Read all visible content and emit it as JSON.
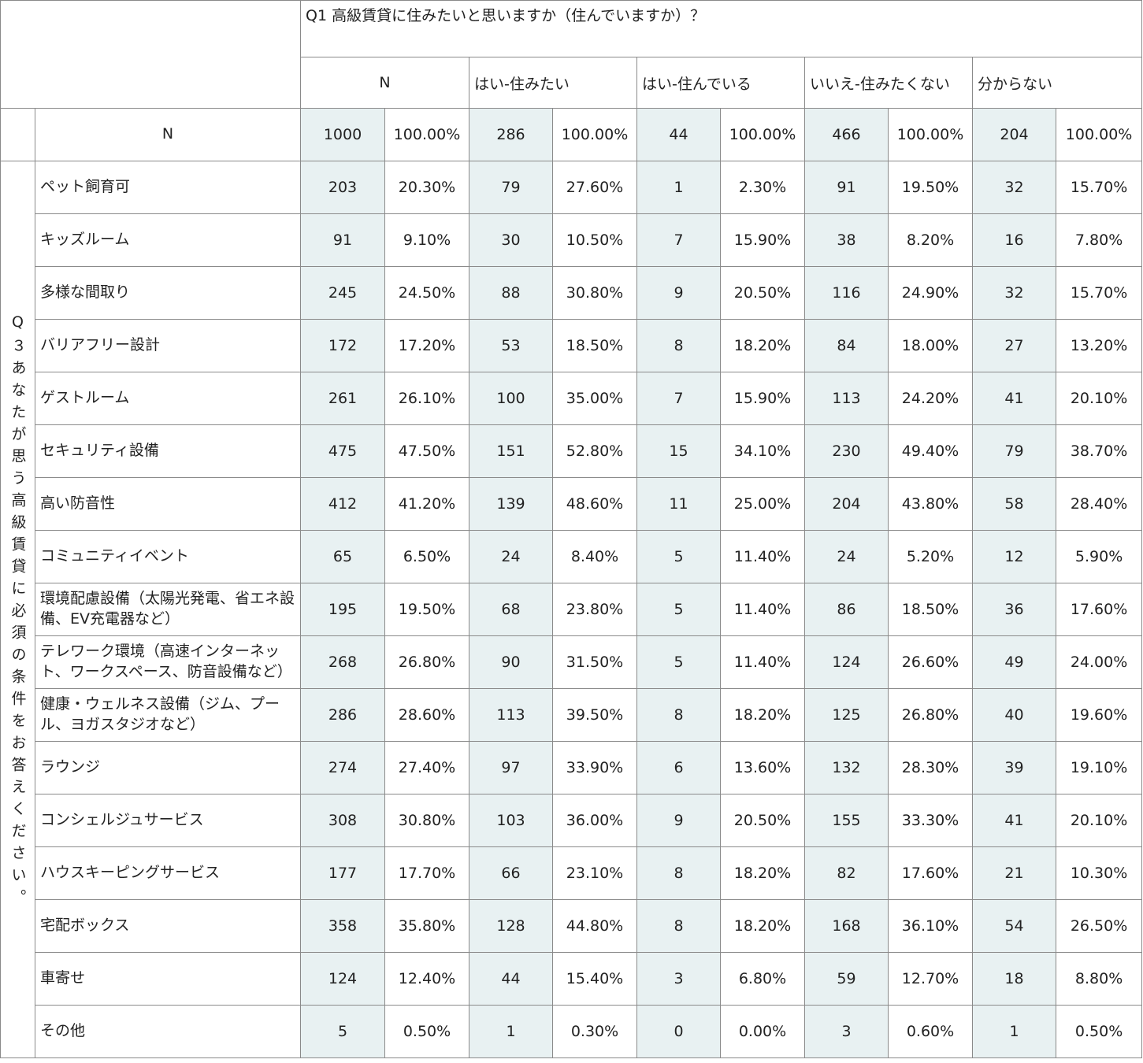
{
  "question1": "Q1 高級賃貸に住みたいと思いますか（住んでいますか）？",
  "answers": [
    "N",
    "はい-住みたい",
    "はい-住んでいる",
    "いいえ-住みたくない",
    "分からない"
  ],
  "question3": "Q３あなたが思う高級賃貸に必須の条件をお答えください。",
  "total_row": {
    "label": "N",
    "cells": [
      "1000",
      "100.00%",
      "286",
      "100.00%",
      "44",
      "100.00%",
      "466",
      "100.00%",
      "204",
      "100.00%"
    ]
  },
  "rows": [
    {
      "label": "ペット飼育可",
      "cells": [
        "203",
        "20.30%",
        "79",
        "27.60%",
        "1",
        "2.30%",
        "91",
        "19.50%",
        "32",
        "15.70%"
      ]
    },
    {
      "label": "キッズルーム",
      "cells": [
        "91",
        "9.10%",
        "30",
        "10.50%",
        "7",
        "15.90%",
        "38",
        "8.20%",
        "16",
        "7.80%"
      ]
    },
    {
      "label": "多様な間取り",
      "cells": [
        "245",
        "24.50%",
        "88",
        "30.80%",
        "9",
        "20.50%",
        "116",
        "24.90%",
        "32",
        "15.70%"
      ]
    },
    {
      "label": "バリアフリー設計",
      "cells": [
        "172",
        "17.20%",
        "53",
        "18.50%",
        "8",
        "18.20%",
        "84",
        "18.00%",
        "27",
        "13.20%"
      ]
    },
    {
      "label": "ゲストルーム",
      "cells": [
        "261",
        "26.10%",
        "100",
        "35.00%",
        "7",
        "15.90%",
        "113",
        "24.20%",
        "41",
        "20.10%"
      ]
    },
    {
      "label": "セキュリティ設備",
      "cells": [
        "475",
        "47.50%",
        "151",
        "52.80%",
        "15",
        "34.10%",
        "230",
        "49.40%",
        "79",
        "38.70%"
      ]
    },
    {
      "label": "高い防音性",
      "cells": [
        "412",
        "41.20%",
        "139",
        "48.60%",
        "11",
        "25.00%",
        "204",
        "43.80%",
        "58",
        "28.40%"
      ]
    },
    {
      "label": "コミュニティイベント",
      "cells": [
        "65",
        "6.50%",
        "24",
        "8.40%",
        "5",
        "11.40%",
        "24",
        "5.20%",
        "12",
        "5.90%"
      ]
    },
    {
      "label": "環境配慮設備（太陽光発電、省エネ設備、EV充電器など）",
      "cells": [
        "195",
        "19.50%",
        "68",
        "23.80%",
        "5",
        "11.40%",
        "86",
        "18.50%",
        "36",
        "17.60%"
      ]
    },
    {
      "label": "テレワーク環境（高速インターネット、ワークスペース、防音設備など）",
      "cells": [
        "268",
        "26.80%",
        "90",
        "31.50%",
        "5",
        "11.40%",
        "124",
        "26.60%",
        "49",
        "24.00%"
      ]
    },
    {
      "label": "健康・ウェルネス設備（ジム、プール、ヨガスタジオなど）",
      "cells": [
        "286",
        "28.60%",
        "113",
        "39.50%",
        "8",
        "18.20%",
        "125",
        "26.80%",
        "40",
        "19.60%"
      ]
    },
    {
      "label": "ラウンジ",
      "cells": [
        "274",
        "27.40%",
        "97",
        "33.90%",
        "6",
        "13.60%",
        "132",
        "28.30%",
        "39",
        "19.10%"
      ]
    },
    {
      "label": "コンシェルジュサービス",
      "cells": [
        "308",
        "30.80%",
        "103",
        "36.00%",
        "9",
        "20.50%",
        "155",
        "33.30%",
        "41",
        "20.10%"
      ]
    },
    {
      "label": "ハウスキーピングサービス",
      "cells": [
        "177",
        "17.70%",
        "66",
        "23.10%",
        "8",
        "18.20%",
        "82",
        "17.60%",
        "21",
        "10.30%"
      ]
    },
    {
      "label": "宅配ボックス",
      "cells": [
        "358",
        "35.80%",
        "128",
        "44.80%",
        "8",
        "18.20%",
        "168",
        "36.10%",
        "54",
        "26.50%"
      ]
    },
    {
      "label": "車寄せ",
      "cells": [
        "124",
        "12.40%",
        "44",
        "15.40%",
        "3",
        "6.80%",
        "59",
        "12.70%",
        "18",
        "8.80%"
      ]
    },
    {
      "label": "その他",
      "cells": [
        "5",
        "0.50%",
        "1",
        "0.30%",
        "0",
        "0.00%",
        "3",
        "0.60%",
        "1",
        "0.50%"
      ]
    }
  ]
}
